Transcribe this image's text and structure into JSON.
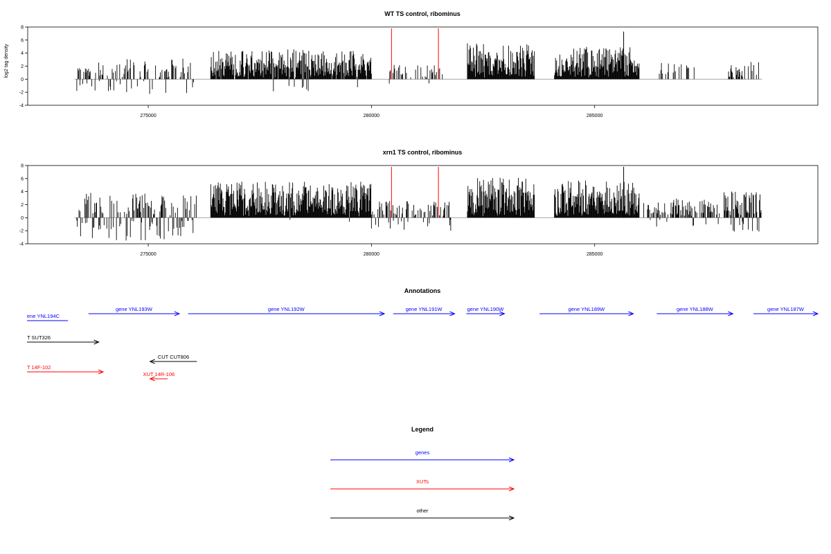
{
  "chart_data": [
    {
      "type": "bar",
      "title": "WT TS control, ribominus",
      "ylabel": "log2 tag density",
      "xlabel": "",
      "xlim": [
        272300,
        290000
      ],
      "ylim": [
        -4,
        8
      ],
      "yticks": [
        -4,
        -2,
        0,
        2,
        4,
        6,
        8
      ],
      "xticks": [
        275000,
        280000,
        285000
      ],
      "xtick_labels": [
        "275000",
        "280000",
        "285000"
      ],
      "grid": false,
      "markers": [
        280450,
        281500
      ],
      "marker_color": "#ff0000",
      "baseline_range": [
        273350,
        288750
      ],
      "regions": [
        {
          "start": 273400,
          "end": 276100,
          "density": 0.45,
          "maxv": 3.2,
          "neg": 0.25,
          "minv": -2.4,
          "seed": 11
        },
        {
          "start": 276400,
          "end": 280000,
          "density": 0.95,
          "maxv": 4.6,
          "neg": 0.02,
          "minv": -2.0,
          "seed": 23
        },
        {
          "start": 280400,
          "end": 281600,
          "density": 0.3,
          "maxv": 2.2,
          "neg": 0.05,
          "minv": -1.6,
          "seed": 37
        },
        {
          "start": 282150,
          "end": 283650,
          "density": 1.0,
          "maxv": 5.5,
          "neg": 0.0,
          "minv": 0,
          "seed": 41
        },
        {
          "start": 284100,
          "end": 286000,
          "density": 1.0,
          "maxv": 5.0,
          "neg": 0.0,
          "minv": 0,
          "seed": 53,
          "peak": [
            285650,
            7.3
          ]
        },
        {
          "start": 286400,
          "end": 287400,
          "density": 0.25,
          "maxv": 2.6,
          "neg": 0.0,
          "minv": 0,
          "seed": 61
        },
        {
          "start": 288000,
          "end": 288700,
          "density": 0.35,
          "maxv": 2.8,
          "neg": 0.0,
          "minv": 0,
          "seed": 67
        }
      ]
    },
    {
      "type": "bar",
      "title": "xrn1 TS control, ribominus",
      "ylabel": "",
      "xlabel": "",
      "xlim": [
        272300,
        290000
      ],
      "ylim": [
        -4,
        8
      ],
      "yticks": [
        -4,
        -2,
        0,
        2,
        4,
        6,
        8
      ],
      "xticks": [
        275000,
        280000,
        285000
      ],
      "xtick_labels": [
        "275000",
        "280000",
        "285000"
      ],
      "grid": false,
      "markers": [
        280450,
        281500
      ],
      "marker_color": "#ff0000",
      "baseline_range": [
        273350,
        288750
      ],
      "regions": [
        {
          "start": 273400,
          "end": 276100,
          "density": 0.55,
          "maxv": 3.8,
          "neg": 0.35,
          "minv": -3.6,
          "seed": 13
        },
        {
          "start": 276400,
          "end": 280000,
          "density": 1.0,
          "maxv": 5.6,
          "neg": 0.02,
          "minv": -1.0,
          "seed": 29
        },
        {
          "start": 280000,
          "end": 281800,
          "density": 0.45,
          "maxv": 2.6,
          "neg": 0.3,
          "minv": -2.0,
          "seed": 31
        },
        {
          "start": 282150,
          "end": 283650,
          "density": 1.0,
          "maxv": 6.2,
          "neg": 0.0,
          "minv": 0,
          "seed": 43
        },
        {
          "start": 284100,
          "end": 286000,
          "density": 1.0,
          "maxv": 5.8,
          "neg": 0.0,
          "minv": 0,
          "seed": 59,
          "peak": [
            285650,
            7.8
          ]
        },
        {
          "start": 286100,
          "end": 287800,
          "density": 0.6,
          "maxv": 3.0,
          "neg": 0.1,
          "minv": -1.5,
          "seed": 71
        },
        {
          "start": 287900,
          "end": 288750,
          "density": 0.8,
          "maxv": 4.3,
          "neg": 0.2,
          "minv": -2.4,
          "seed": 73
        }
      ]
    }
  ],
  "annotations": {
    "title": "Annotations",
    "features": [
      {
        "label": "ene YNL194C",
        "start": 272300,
        "end": 273700,
        "row": 0,
        "strand": "none",
        "color": "#0000ff"
      },
      {
        "label": "gene YNL193W",
        "start": 274400,
        "end": 277500,
        "row": 1,
        "strand": "+",
        "color": "#0000ff"
      },
      {
        "label": "gene YNL192W",
        "start": 277800,
        "end": 284500,
        "row": 1,
        "strand": "+",
        "color": "#0000ff"
      },
      {
        "label": "gene YNL191W",
        "start": 284800,
        "end": 286900,
        "row": 1,
        "strand": "+",
        "color": "#0000ff"
      },
      {
        "label": "gene YNL190W",
        "start": 287300,
        "end": 288600,
        "row": 1,
        "strand": "+",
        "color": "#0000ff"
      },
      {
        "label": "gene YNL189W",
        "start": 289800,
        "end": 293000,
        "row": 1,
        "strand": "+",
        "color": "#0000ff"
      },
      {
        "label": "gene YNL188W",
        "start": 293800,
        "end": 296400,
        "row": 1,
        "strand": "+",
        "color": "#0000ff"
      },
      {
        "label": "gene YNL187W",
        "start": 297100,
        "end": 299300,
        "row": 1,
        "strand": "+",
        "color": "#0000ff"
      },
      {
        "label": "T SUT326",
        "start": 272300,
        "end": 274750,
        "row": 2,
        "strand": "+",
        "color": "#000000"
      },
      {
        "label": "CUT CUT806",
        "start": 276500,
        "end": 278100,
        "row": 3,
        "strand": "-",
        "color": "#000000"
      },
      {
        "label": "T 14F-102",
        "start": 272300,
        "end": 274900,
        "row": 4,
        "strand": "+",
        "color": "#ff0000"
      },
      {
        "label": "XUT 14R-106",
        "start": 276500,
        "end": 277100,
        "row": 5,
        "strand": "-",
        "color": "#ff0000"
      }
    ]
  },
  "legend": {
    "title": "Legend",
    "items": [
      {
        "label": "genes",
        "color": "#0000ff"
      },
      {
        "label": "XUTs",
        "color": "#ff0000"
      },
      {
        "label": "other",
        "color": "#000000"
      }
    ]
  }
}
